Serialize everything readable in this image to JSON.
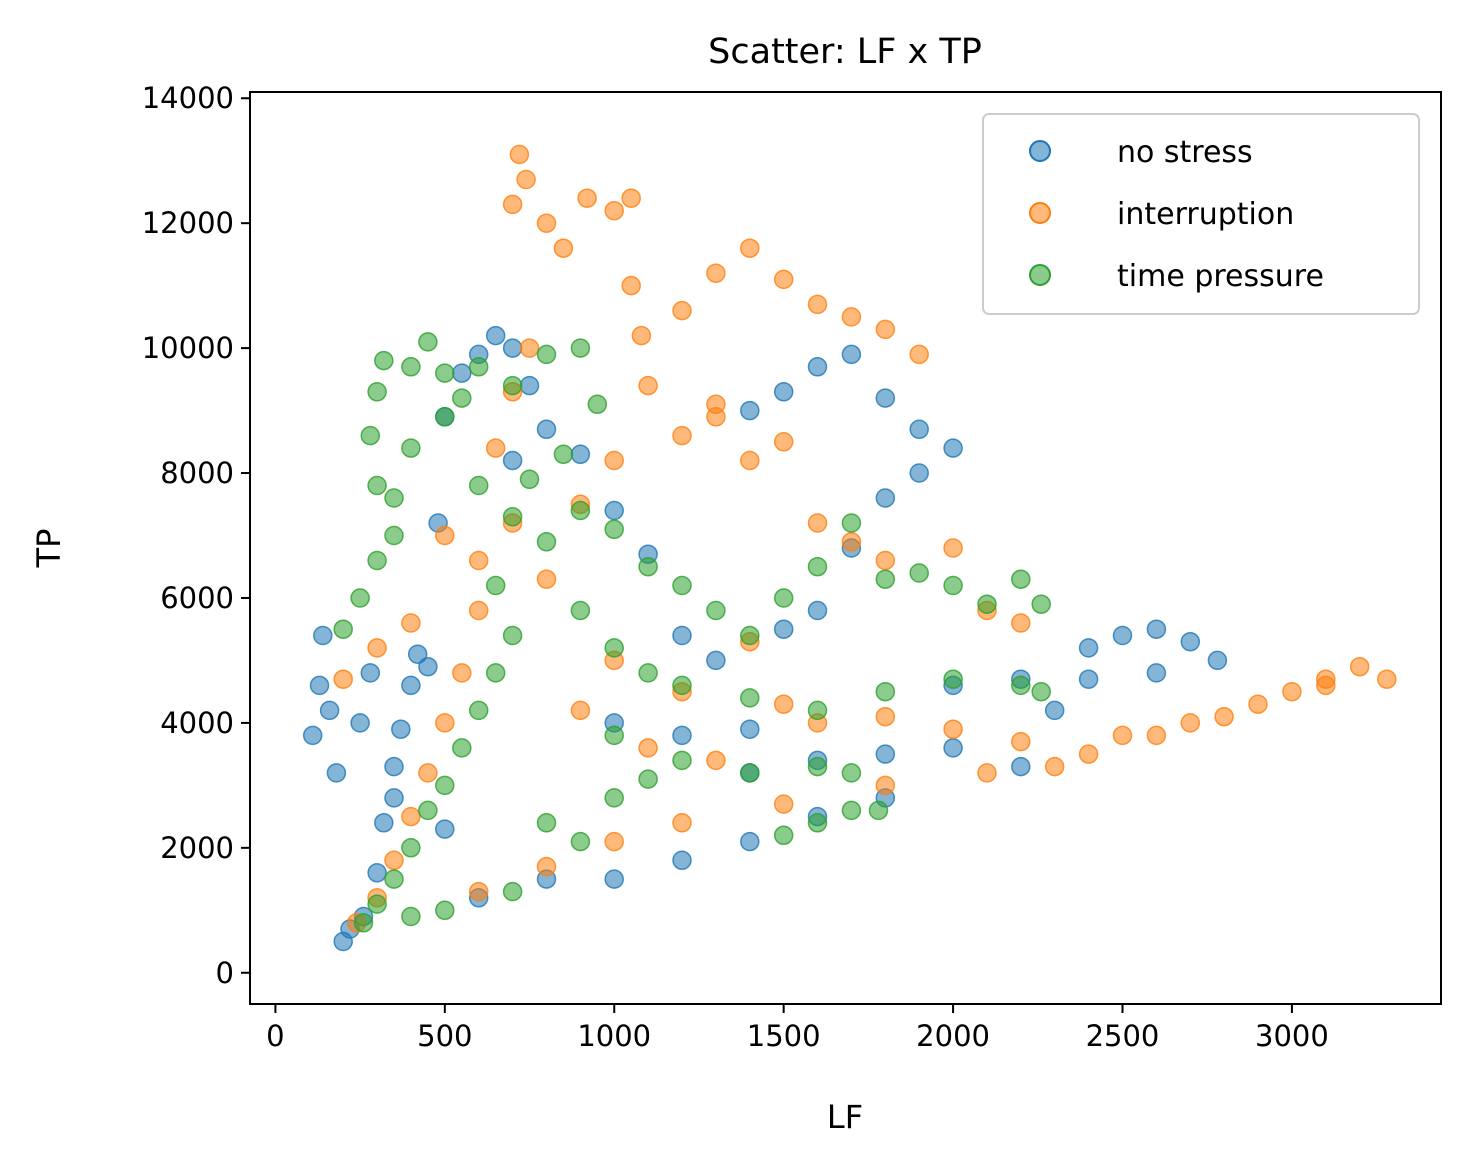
{
  "chart_data": {
    "type": "scatter",
    "title": "Scatter: LF x TP",
    "xlabel": "LF",
    "ylabel": "TP",
    "xlim": [
      -75,
      3440
    ],
    "ylim": [
      -500,
      14100
    ],
    "xticks": [
      0,
      500,
      1000,
      1500,
      2000,
      2500,
      3000
    ],
    "yticks": [
      0,
      2000,
      4000,
      6000,
      8000,
      10000,
      12000,
      14000
    ],
    "grid": false,
    "legend_position": "top-right",
    "series": [
      {
        "name": "no stress",
        "color": "#1f77b4",
        "points": [
          [
            110,
            3800
          ],
          [
            130,
            4600
          ],
          [
            140,
            5400
          ],
          [
            160,
            4200
          ],
          [
            180,
            3200
          ],
          [
            200,
            500
          ],
          [
            220,
            700
          ],
          [
            260,
            900
          ],
          [
            300,
            1600
          ],
          [
            320,
            2400
          ],
          [
            350,
            2800
          ],
          [
            370,
            3900
          ],
          [
            400,
            4600
          ],
          [
            420,
            5100
          ],
          [
            450,
            4900
          ],
          [
            480,
            7200
          ],
          [
            500,
            8900
          ],
          [
            550,
            9600
          ],
          [
            600,
            9900
          ],
          [
            650,
            10200
          ],
          [
            700,
            10000
          ],
          [
            750,
            9400
          ],
          [
            700,
            8200
          ],
          [
            800,
            8700
          ],
          [
            900,
            8300
          ],
          [
            1000,
            7400
          ],
          [
            1100,
            6700
          ],
          [
            1200,
            5400
          ],
          [
            1300,
            5000
          ],
          [
            1400,
            9000
          ],
          [
            1500,
            9300
          ],
          [
            1600,
            9700
          ],
          [
            1700,
            9900
          ],
          [
            1800,
            9200
          ],
          [
            1900,
            8700
          ],
          [
            2000,
            8400
          ],
          [
            1900,
            8000
          ],
          [
            1800,
            7600
          ],
          [
            1700,
            6800
          ],
          [
            1600,
            5800
          ],
          [
            1500,
            5500
          ],
          [
            1400,
            3200
          ],
          [
            1600,
            3400
          ],
          [
            1800,
            3500
          ],
          [
            2000,
            3600
          ],
          [
            2200,
            3300
          ],
          [
            2300,
            4200
          ],
          [
            2400,
            5200
          ],
          [
            2500,
            5400
          ],
          [
            2600,
            5500
          ],
          [
            2700,
            5300
          ],
          [
            2780,
            5000
          ],
          [
            2600,
            4800
          ],
          [
            2400,
            4700
          ],
          [
            2200,
            4700
          ],
          [
            2000,
            4600
          ],
          [
            1000,
            1500
          ],
          [
            1200,
            1800
          ],
          [
            1400,
            2100
          ],
          [
            1600,
            2500
          ],
          [
            1800,
            2800
          ],
          [
            1000,
            4000
          ],
          [
            1200,
            3800
          ],
          [
            1400,
            3900
          ],
          [
            600,
            1200
          ],
          [
            800,
            1500
          ],
          [
            500,
            2300
          ],
          [
            350,
            3300
          ],
          [
            250,
            4000
          ],
          [
            280,
            4800
          ]
        ]
      },
      {
        "name": "interruption",
        "color": "#ff7f0e",
        "points": [
          [
            240,
            800
          ],
          [
            300,
            1200
          ],
          [
            350,
            1800
          ],
          [
            400,
            2500
          ],
          [
            450,
            3200
          ],
          [
            500,
            4000
          ],
          [
            550,
            4800
          ],
          [
            400,
            5600
          ],
          [
            300,
            5200
          ],
          [
            200,
            4700
          ],
          [
            600,
            5800
          ],
          [
            700,
            7200
          ],
          [
            650,
            8400
          ],
          [
            700,
            9300
          ],
          [
            750,
            10000
          ],
          [
            700,
            12300
          ],
          [
            720,
            13100
          ],
          [
            740,
            12700
          ],
          [
            800,
            12000
          ],
          [
            850,
            11600
          ],
          [
            920,
            12400
          ],
          [
            1000,
            12200
          ],
          [
            1050,
            12400
          ],
          [
            1050,
            11000
          ],
          [
            1080,
            10200
          ],
          [
            1200,
            10600
          ],
          [
            1300,
            11200
          ],
          [
            1400,
            11600
          ],
          [
            1500,
            11100
          ],
          [
            1600,
            10700
          ],
          [
            1700,
            10500
          ],
          [
            1800,
            10300
          ],
          [
            1900,
            9900
          ],
          [
            1100,
            9400
          ],
          [
            1300,
            9100
          ],
          [
            1500,
            8500
          ],
          [
            1600,
            7200
          ],
          [
            1700,
            6900
          ],
          [
            1800,
            6600
          ],
          [
            2000,
            6800
          ],
          [
            2100,
            5800
          ],
          [
            2200,
            5600
          ],
          [
            1500,
            4300
          ],
          [
            1600,
            4000
          ],
          [
            1800,
            4100
          ],
          [
            2000,
            3900
          ],
          [
            2200,
            3700
          ],
          [
            2400,
            3500
          ],
          [
            2600,
            3800
          ],
          [
            2800,
            4100
          ],
          [
            3000,
            4500
          ],
          [
            3100,
            4700
          ],
          [
            3200,
            4900
          ],
          [
            3280,
            4700
          ],
          [
            3100,
            4600
          ],
          [
            2900,
            4300
          ],
          [
            2700,
            4000
          ],
          [
            2500,
            3800
          ],
          [
            2300,
            3300
          ],
          [
            2100,
            3200
          ],
          [
            1800,
            3000
          ],
          [
            1500,
            2700
          ],
          [
            1200,
            2400
          ],
          [
            1000,
            2100
          ],
          [
            800,
            1700
          ],
          [
            600,
            1300
          ],
          [
            900,
            7500
          ],
          [
            1000,
            8200
          ],
          [
            1200,
            8600
          ],
          [
            1300,
            8900
          ],
          [
            1400,
            8200
          ],
          [
            1000,
            5000
          ],
          [
            1200,
            4500
          ],
          [
            1400,
            5300
          ],
          [
            800,
            6300
          ],
          [
            600,
            6600
          ],
          [
            500,
            7000
          ],
          [
            900,
            4200
          ],
          [
            1100,
            3600
          ],
          [
            1300,
            3400
          ]
        ]
      },
      {
        "name": "time pressure",
        "color": "#2ca02c",
        "points": [
          [
            260,
            800
          ],
          [
            300,
            1100
          ],
          [
            350,
            1500
          ],
          [
            400,
            2000
          ],
          [
            450,
            2600
          ],
          [
            500,
            3000
          ],
          [
            550,
            3600
          ],
          [
            600,
            4200
          ],
          [
            650,
            4800
          ],
          [
            700,
            5400
          ],
          [
            200,
            5500
          ],
          [
            250,
            6000
          ],
          [
            300,
            6600
          ],
          [
            350,
            7000
          ],
          [
            300,
            7800
          ],
          [
            280,
            8600
          ],
          [
            300,
            9300
          ],
          [
            320,
            9800
          ],
          [
            400,
            9700
          ],
          [
            450,
            10100
          ],
          [
            500,
            9600
          ],
          [
            550,
            9200
          ],
          [
            600,
            9700
          ],
          [
            700,
            9400
          ],
          [
            800,
            9900
          ],
          [
            900,
            10000
          ],
          [
            950,
            9100
          ],
          [
            850,
            8300
          ],
          [
            750,
            7900
          ],
          [
            700,
            7300
          ],
          [
            800,
            6900
          ],
          [
            900,
            7400
          ],
          [
            1000,
            7100
          ],
          [
            1100,
            6500
          ],
          [
            1200,
            6200
          ],
          [
            1300,
            5800
          ],
          [
            1400,
            5400
          ],
          [
            1500,
            6000
          ],
          [
            1600,
            6500
          ],
          [
            1700,
            7200
          ],
          [
            1800,
            6300
          ],
          [
            1900,
            6400
          ],
          [
            2000,
            6200
          ],
          [
            2100,
            5900
          ],
          [
            2200,
            6300
          ],
          [
            2260,
            5900
          ],
          [
            1200,
            4600
          ],
          [
            1400,
            4400
          ],
          [
            1600,
            4200
          ],
          [
            1800,
            4500
          ],
          [
            2000,
            4700
          ],
          [
            2200,
            4600
          ],
          [
            2260,
            4500
          ],
          [
            1000,
            3800
          ],
          [
            1200,
            3400
          ],
          [
            1400,
            3200
          ],
          [
            1600,
            3300
          ],
          [
            1700,
            3200
          ],
          [
            1500,
            2200
          ],
          [
            1600,
            2400
          ],
          [
            1700,
            2600
          ],
          [
            1780,
            2600
          ],
          [
            800,
            2400
          ],
          [
            900,
            2100
          ],
          [
            1000,
            2800
          ],
          [
            1100,
            3100
          ],
          [
            700,
            1300
          ],
          [
            500,
            1000
          ],
          [
            400,
            900
          ],
          [
            900,
            5800
          ],
          [
            1000,
            5200
          ],
          [
            1100,
            4800
          ],
          [
            650,
            6200
          ],
          [
            600,
            7800
          ],
          [
            500,
            8900
          ],
          [
            400,
            8400
          ],
          [
            350,
            7600
          ]
        ]
      }
    ]
  }
}
